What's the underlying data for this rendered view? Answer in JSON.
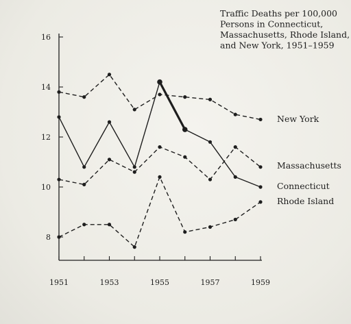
{
  "chart_data": {
    "type": "line",
    "title_lines": [
      "Traffic Deaths per 100,000",
      "Persons in Connecticut,",
      "Massachusetts, Rhode Island,",
      "and New York, 1951–1959"
    ],
    "xlabel": "",
    "ylabel": "",
    "x": [
      1951,
      1952,
      1953,
      1954,
      1955,
      1956,
      1957,
      1958,
      1959
    ],
    "x_tick_labels": [
      "1951",
      "1953",
      "1955",
      "1957",
      "1959"
    ],
    "xlim": [
      1951,
      1959
    ],
    "y_ticks": [
      8,
      10,
      12,
      14,
      16
    ],
    "ylim": [
      7.6,
      16
    ],
    "grid": false,
    "legend": "direct labels at right end of lines",
    "series": [
      {
        "name": "New York",
        "style": "dashed",
        "values": [
          13.8,
          13.6,
          14.5,
          13.1,
          13.7,
          13.6,
          13.5,
          12.9,
          12.7
        ]
      },
      {
        "name": "Massachusetts",
        "style": "dashed",
        "values": [
          10.3,
          10.1,
          11.1,
          10.6,
          11.6,
          11.2,
          10.3,
          11.6,
          10.8
        ]
      },
      {
        "name": "Connecticut",
        "style": "solid",
        "highlight_segment": [
          1955,
          1956
        ],
        "values": [
          12.8,
          10.8,
          12.6,
          10.8,
          14.2,
          12.3,
          11.8,
          10.4,
          10.0
        ]
      },
      {
        "name": "Rhode Island",
        "style": "dashed",
        "values": [
          8.0,
          8.5,
          8.5,
          7.6,
          10.4,
          8.2,
          8.4,
          8.7,
          9.4
        ]
      }
    ],
    "colors": {
      "ink": "#1e1e1e",
      "paper": "#efeee8"
    }
  }
}
